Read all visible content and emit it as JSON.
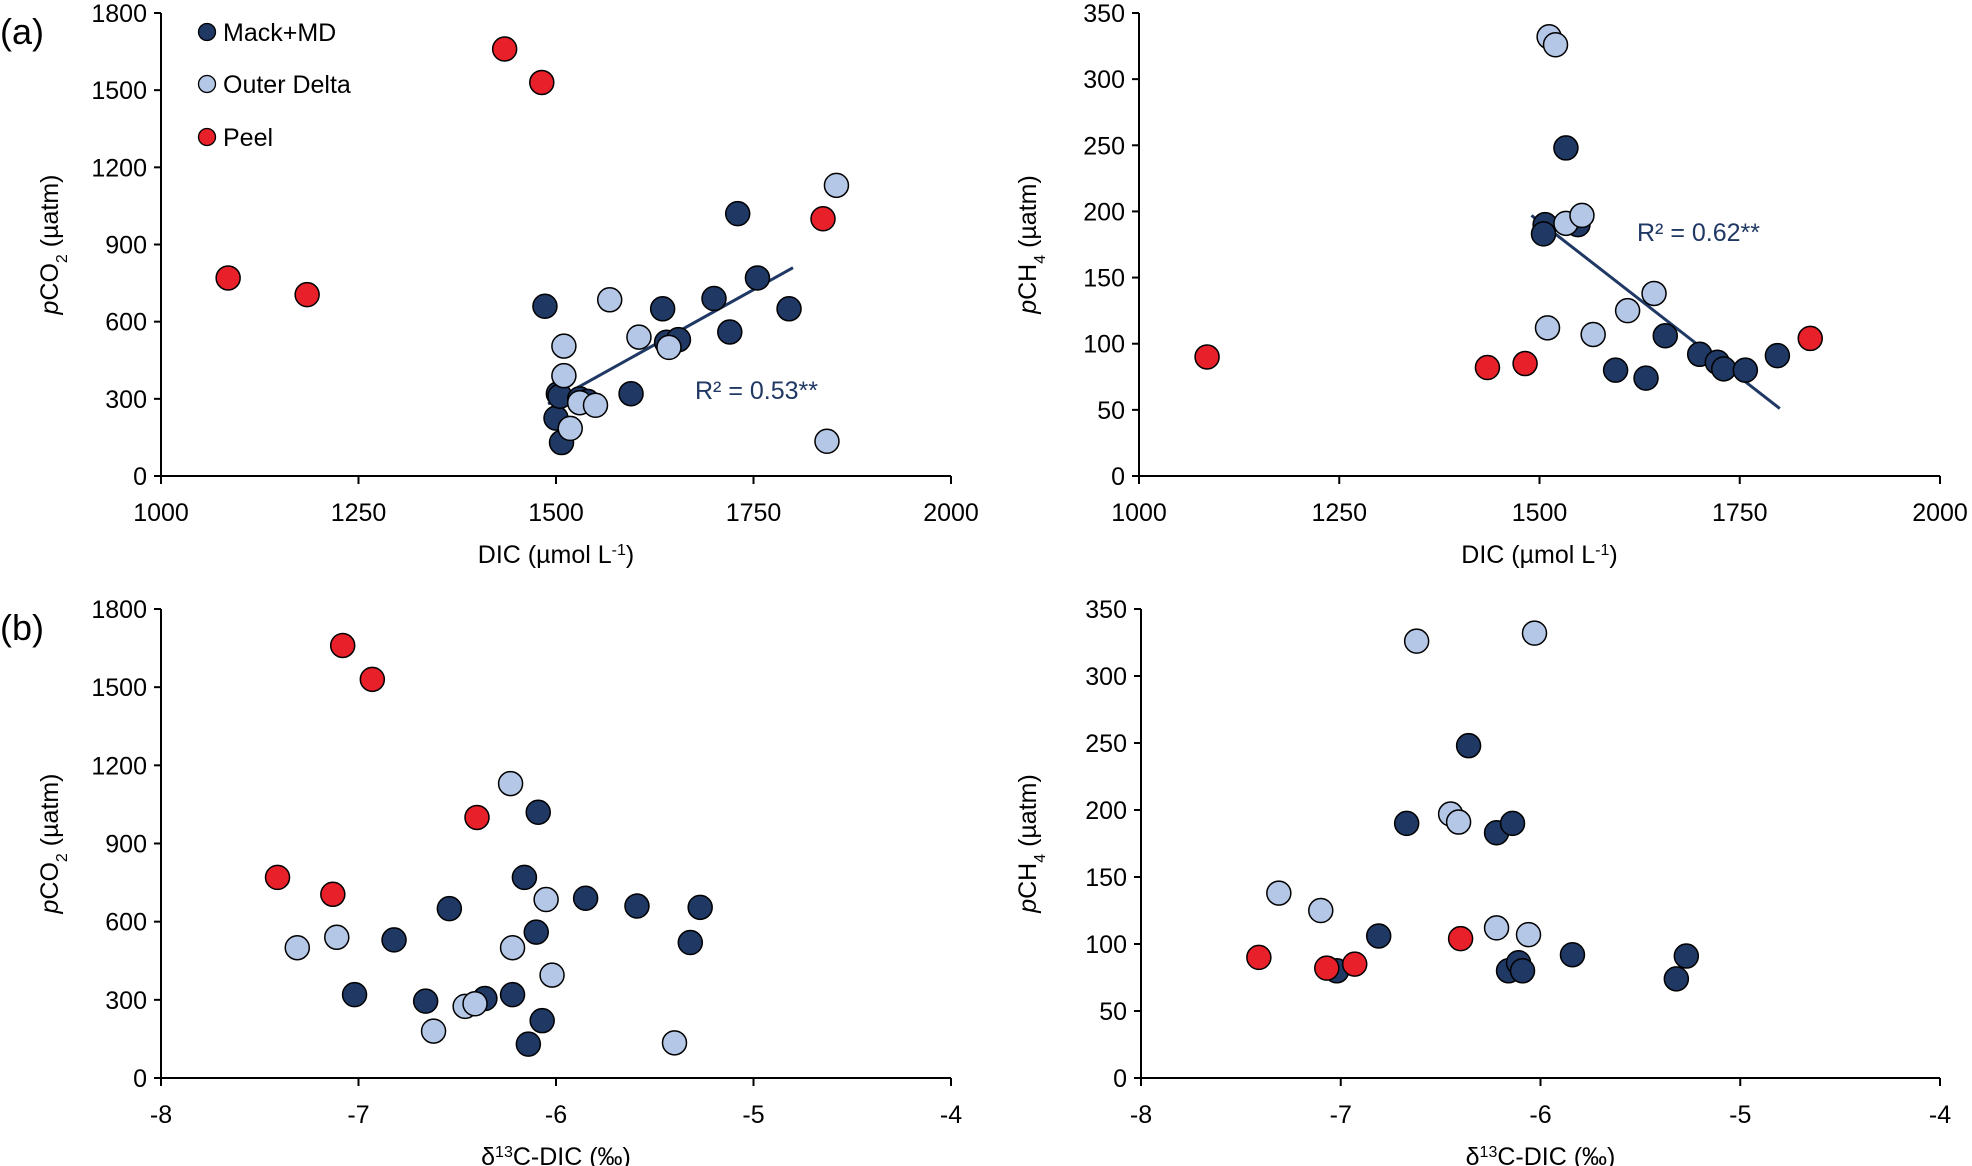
{
  "figure": {
    "panel_labels": [
      "(a)",
      "(b)"
    ]
  },
  "legend": {
    "position": "top-left",
    "entries": [
      {
        "name": "Mack+MD",
        "color": "#1f3864"
      },
      {
        "name": "Outer Delta",
        "color": "#b4c7e7"
      },
      {
        "name": "Peel",
        "color": "#e8202a"
      }
    ]
  },
  "chart_data": [
    {
      "id": "a-left",
      "type": "scatter",
      "panel": "(a)",
      "xlabel": "DIC (µmol L",
      "xlabel_sup": "-1",
      "xlabel_end": ")",
      "ylabel_italic": "p",
      "ylabel": "CO",
      "ylabel_sub": "2",
      "ylabel_end": " (µatm)",
      "xlim": [
        1000,
        2000
      ],
      "ylim": [
        0,
        1800
      ],
      "xticks": [
        1000,
        1250,
        1500,
        1750,
        2000
      ],
      "yticks": [
        0,
        300,
        600,
        900,
        1200,
        1500,
        1800
      ],
      "grid": false,
      "series": [
        {
          "name": "Mack+MD",
          "points": [
            [
              1486,
              660
            ],
            [
              1503,
              320
            ],
            [
              1500,
              225
            ],
            [
              1507,
              130
            ],
            [
              1505,
              310
            ],
            [
              1530,
              300
            ],
            [
              1540,
              290
            ],
            [
              1595,
              320
            ],
            [
              1635,
              650
            ],
            [
              1640,
              520
            ],
            [
              1655,
              530
            ],
            [
              1700,
              690
            ],
            [
              1720,
              560
            ],
            [
              1730,
              1020
            ],
            [
              1755,
              770
            ],
            [
              1795,
              650
            ]
          ]
        },
        {
          "name": "Outer Delta",
          "points": [
            [
              1510,
              505
            ],
            [
              1510,
              390
            ],
            [
              1518,
              185
            ],
            [
              1530,
              285
            ],
            [
              1550,
              275
            ],
            [
              1568,
              685
            ],
            [
              1605,
              540
            ],
            [
              1643,
              500
            ],
            [
              1843,
              135
            ],
            [
              1855,
              1130
            ]
          ]
        },
        {
          "name": "Peel",
          "points": [
            [
              1085,
              770
            ],
            [
              1185,
              705
            ],
            [
              1435,
              1660
            ],
            [
              1482,
              1530
            ],
            [
              1838,
              1000
            ]
          ]
        }
      ],
      "trendline": {
        "x": [
          1490,
          1800
        ],
        "y": [
          280,
          810
        ],
        "color": "#1f3864"
      },
      "annotation": "R² = 0.53**"
    },
    {
      "id": "a-right",
      "type": "scatter",
      "panel": "(a)",
      "xlabel": "DIC (µmol L",
      "xlabel_sup": "-1",
      "xlabel_end": ")",
      "ylabel_italic": "p",
      "ylabel": "CH",
      "ylabel_sub": "4",
      "ylabel_end": " (µatm)",
      "xlim": [
        1000,
        2000
      ],
      "ylim": [
        0,
        350
      ],
      "xticks": [
        1000,
        1250,
        1500,
        1750,
        2000
      ],
      "yticks": [
        0,
        50,
        100,
        150,
        200,
        250,
        300,
        350
      ],
      "grid": false,
      "series": [
        {
          "name": "Mack+MD",
          "points": [
            [
              1507,
              190
            ],
            [
              1505,
              183
            ],
            [
              1548,
              190
            ],
            [
              1533,
              248
            ],
            [
              1595,
              80
            ],
            [
              1633,
              74
            ],
            [
              1657,
              106
            ],
            [
              1700,
              92
            ],
            [
              1722,
              86
            ],
            [
              1730,
              81
            ],
            [
              1757,
              80
            ],
            [
              1797,
              91
            ]
          ]
        },
        {
          "name": "Outer Delta",
          "points": [
            [
              1512,
              332
            ],
            [
              1520,
              326
            ],
            [
              1510,
              112
            ],
            [
              1533,
              191
            ],
            [
              1553,
              197
            ],
            [
              1567,
              107
            ],
            [
              1610,
              125
            ],
            [
              1643,
              138
            ]
          ]
        },
        {
          "name": "Peel",
          "points": [
            [
              1085,
              90
            ],
            [
              1435,
              82
            ],
            [
              1482,
              85
            ],
            [
              1838,
              104
            ]
          ]
        }
      ],
      "trendline": {
        "x": [
          1490,
          1800
        ],
        "y": [
          197,
          51
        ],
        "color": "#1f3864"
      },
      "annotation": "R² = 0.62**"
    },
    {
      "id": "b-left",
      "type": "scatter",
      "panel": "(b)",
      "xlabel": "δ",
      "xlabel_sup": "13",
      "xlabel_end": "C-DIC (‰)",
      "ylabel_italic": "p",
      "ylabel": "CO",
      "ylabel_sub": "2",
      "ylabel_end": " (µatm)",
      "xlim": [
        -8,
        -4
      ],
      "ylim": [
        0,
        1800
      ],
      "xticks": [
        -8,
        -7,
        -6,
        -5,
        -4
      ],
      "yticks": [
        0,
        300,
        600,
        900,
        1200,
        1500,
        1800
      ],
      "grid": false,
      "series": [
        {
          "name": "Mack+MD",
          "points": [
            [
              -7.02,
              320
            ],
            [
              -6.82,
              530
            ],
            [
              -6.66,
              295
            ],
            [
              -6.54,
              650
            ],
            [
              -6.36,
              305
            ],
            [
              -6.22,
              320
            ],
            [
              -6.16,
              770
            ],
            [
              -6.14,
              130
            ],
            [
              -6.1,
              560
            ],
            [
              -6.09,
              1020
            ],
            [
              -6.07,
              220
            ],
            [
              -5.85,
              690
            ],
            [
              -5.59,
              660
            ],
            [
              -5.32,
              520
            ],
            [
              -5.27,
              655
            ]
          ]
        },
        {
          "name": "Outer Delta",
          "points": [
            [
              -7.31,
              500
            ],
            [
              -7.11,
              540
            ],
            [
              -6.62,
              180
            ],
            [
              -6.46,
              275
            ],
            [
              -6.41,
              285
            ],
            [
              -6.23,
              1130
            ],
            [
              -6.22,
              500
            ],
            [
              -6.05,
              685
            ],
            [
              -6.02,
              395
            ],
            [
              -5.4,
              135
            ]
          ]
        },
        {
          "name": "Peel",
          "points": [
            [
              -7.41,
              770
            ],
            [
              -7.13,
              705
            ],
            [
              -7.08,
              1660
            ],
            [
              -6.93,
              1530
            ],
            [
              -6.4,
              1000
            ]
          ]
        }
      ]
    },
    {
      "id": "b-right",
      "type": "scatter",
      "panel": "(b)",
      "xlabel": "δ",
      "xlabel_sup": "13",
      "xlabel_end": "C-DIC (‰)",
      "ylabel_italic": "p",
      "ylabel": "CH",
      "ylabel_sub": "4",
      "ylabel_end": " (µatm)",
      "xlim": [
        -8,
        -4
      ],
      "ylim": [
        0,
        350
      ],
      "xticks": [
        -8,
        -7,
        -6,
        -5,
        -4
      ],
      "yticks": [
        0,
        50,
        100,
        150,
        200,
        250,
        300,
        350
      ],
      "grid": false,
      "series": [
        {
          "name": "Mack+MD",
          "points": [
            [
              -7.02,
              80
            ],
            [
              -6.81,
              106
            ],
            [
              -6.67,
              190
            ],
            [
              -6.36,
              248
            ],
            [
              -6.22,
              183
            ],
            [
              -6.16,
              80
            ],
            [
              -6.14,
              190
            ],
            [
              -6.11,
              86
            ],
            [
              -6.09,
              80
            ],
            [
              -5.84,
              92
            ],
            [
              -5.32,
              74
            ],
            [
              -5.27,
              91
            ]
          ]
        },
        {
          "name": "Outer Delta",
          "points": [
            [
              -7.31,
              138
            ],
            [
              -7.1,
              125
            ],
            [
              -6.62,
              326
            ],
            [
              -6.45,
              197
            ],
            [
              -6.41,
              191
            ],
            [
              -6.22,
              112
            ],
            [
              -6.06,
              107
            ],
            [
              -6.03,
              332
            ]
          ]
        },
        {
          "name": "Peel",
          "points": [
            [
              -7.41,
              90
            ],
            [
              -7.07,
              82
            ],
            [
              -6.93,
              85
            ],
            [
              -6.4,
              104
            ]
          ]
        }
      ]
    }
  ]
}
